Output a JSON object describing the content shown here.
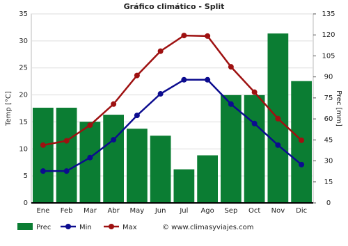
{
  "chart_data": {
    "type": "bar_line_dual",
    "title": "Gráfico climático - Split",
    "y_label": "Temp [°C]",
    "y2_label": "Prec [mm]",
    "credit": "© www.climasyviajes.com",
    "categories": [
      "Ene",
      "Feb",
      "Mar",
      "Abr",
      "May",
      "Jun",
      "Jul",
      "Ago",
      "Sep",
      "Oct",
      "Nov",
      "Dic"
    ],
    "ylim": [
      0,
      35
    ],
    "yticks": [
      0,
      5,
      10,
      15,
      20,
      25,
      30,
      35
    ],
    "y2lim": [
      0,
      135
    ],
    "y2ticks": [
      0,
      15,
      30,
      45,
      60,
      75,
      90,
      105,
      120,
      135
    ],
    "grid": true,
    "series": [
      {
        "name": "Prec",
        "kind": "bar",
        "axis": "y2",
        "color": "#0b7d33",
        "values": [
          68,
          68,
          58,
          63,
          53,
          48,
          24,
          34,
          77,
          77,
          121,
          87
        ]
      },
      {
        "name": "Min",
        "kind": "line",
        "axis": "y",
        "color": "#0c0c8f",
        "values": [
          5.9,
          5.9,
          8.4,
          11.7,
          16.2,
          20.2,
          22.8,
          22.8,
          18.3,
          14.7,
          10.7,
          7.1
        ]
      },
      {
        "name": "Max",
        "kind": "line",
        "axis": "y",
        "color": "#9e1111",
        "values": [
          10.7,
          11.5,
          14.4,
          18.3,
          23.6,
          28.1,
          31.0,
          30.9,
          25.2,
          20.5,
          15.6,
          11.6
        ]
      }
    ]
  }
}
